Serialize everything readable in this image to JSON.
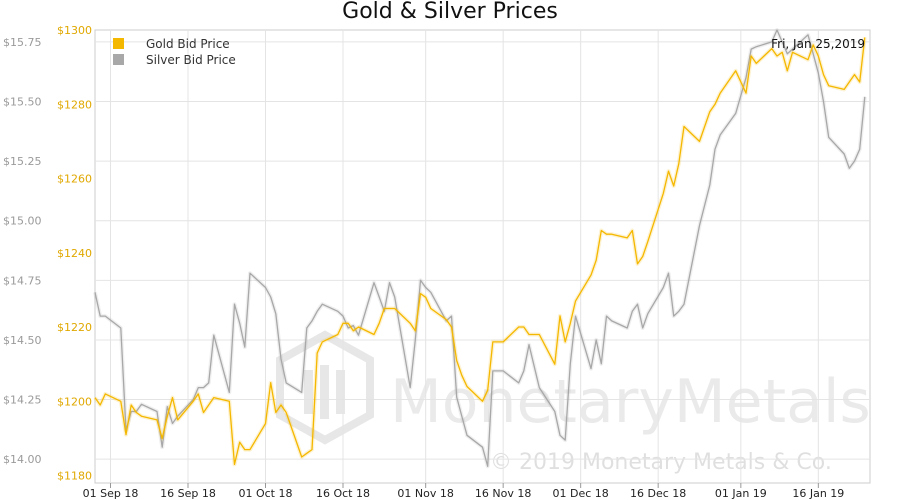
{
  "chart_data": {
    "type": "line",
    "title": "Gold & Silver Prices",
    "date_label": "Fri, Jan 25,2019",
    "watermark": "MonetaryMetals",
    "copyright": "© 2019 Monetary Metals & Co.",
    "x_ticks": [
      "01 Sep 18",
      "16 Sep 18",
      "01 Oct 18",
      "16 Oct 18",
      "01 Nov 18",
      "16 Nov 18",
      "01 Dec 18",
      "16 Dec 18",
      "01 Jan 19",
      "16 Jan 19"
    ],
    "x_range": [
      "2018-08-29",
      "2019-01-26"
    ],
    "y_left": {
      "label": "",
      "ticks": [
        "$14.00",
        "$14.25",
        "$14.50",
        "$14.75",
        "$15.00",
        "$15.25",
        "$15.50",
        "$15.75"
      ],
      "range": [
        13.9,
        15.8
      ]
    },
    "y_right": {
      "label": "",
      "ticks": [
        "$1180",
        "$1200",
        "$1220",
        "$1240",
        "$1260",
        "$1280",
        "$1300"
      ],
      "range": [
        1178,
        1300
      ]
    },
    "grid": true,
    "legend": {
      "placement": "top-left",
      "entries": [
        "Gold Bid Price",
        "Silver Bid Price"
      ]
    },
    "colors": {
      "gold": "#f5b800",
      "silver": "#a8a8a8",
      "grid": "#e4e4e4"
    },
    "series": [
      {
        "name": "Gold Bid Price",
        "axis": "right",
        "x": [
          "2018-08-29",
          "2018-08-30",
          "2018-08-31",
          "2018-09-03",
          "2018-09-04",
          "2018-09-05",
          "2018-09-06",
          "2018-09-07",
          "2018-09-10",
          "2018-09-11",
          "2018-09-12",
          "2018-09-13",
          "2018-09-14",
          "2018-09-17",
          "2018-09-18",
          "2018-09-19",
          "2018-09-20",
          "2018-09-21",
          "2018-09-24",
          "2018-09-25",
          "2018-09-26",
          "2018-09-27",
          "2018-09-28",
          "2018-10-01",
          "2018-10-02",
          "2018-10-03",
          "2018-10-04",
          "2018-10-05",
          "2018-10-08",
          "2018-10-09",
          "2018-10-10",
          "2018-10-11",
          "2018-10-12",
          "2018-10-15",
          "2018-10-16",
          "2018-10-17",
          "2018-10-18",
          "2018-10-19",
          "2018-10-22",
          "2018-10-23",
          "2018-10-24",
          "2018-10-25",
          "2018-10-26",
          "2018-10-29",
          "2018-10-30",
          "2018-10-31",
          "2018-11-01",
          "2018-11-02",
          "2018-11-05",
          "2018-11-06",
          "2018-11-07",
          "2018-11-08",
          "2018-11-09",
          "2018-11-12",
          "2018-11-13",
          "2018-11-14",
          "2018-11-15",
          "2018-11-16",
          "2018-11-19",
          "2018-11-20",
          "2018-11-21",
          "2018-11-23",
          "2018-11-26",
          "2018-11-27",
          "2018-11-28",
          "2018-11-29",
          "2018-11-30",
          "2018-12-03",
          "2018-12-04",
          "2018-12-05",
          "2018-12-06",
          "2018-12-07",
          "2018-12-10",
          "2018-12-11",
          "2018-12-12",
          "2018-12-13",
          "2018-12-14",
          "2018-12-17",
          "2018-12-18",
          "2018-12-19",
          "2018-12-20",
          "2018-12-21",
          "2018-12-24",
          "2018-12-26",
          "2018-12-27",
          "2018-12-28",
          "2018-12-31",
          "2019-01-02",
          "2019-01-03",
          "2019-01-04",
          "2019-01-07",
          "2019-01-08",
          "2019-01-09",
          "2019-01-10",
          "2019-01-11",
          "2019-01-14",
          "2019-01-15",
          "2019-01-16",
          "2019-01-17",
          "2019-01-18",
          "2019-01-21",
          "2019-01-22",
          "2019-01-23",
          "2019-01-24",
          "2019-01-25"
        ],
        "values": [
          1201,
          1199,
          1202,
          1200,
          1191,
          1199,
          1197,
          1196,
          1195,
          1190,
          1196,
          1201,
          1195,
          1200,
          1202,
          1197,
          1199,
          1201,
          1200,
          1183,
          1189,
          1187,
          1187,
          1194,
          1205,
          1197,
          1199,
          1197,
          1185,
          1186,
          1187,
          1213,
          1216,
          1218,
          1221,
          1221,
          1219,
          1220,
          1218,
          1221,
          1225,
          1225,
          1225,
          1221,
          1219,
          1229,
          1228,
          1225,
          1222,
          1220,
          1211,
          1207,
          1204,
          1200,
          1203,
          1216,
          1216,
          1216,
          1220,
          1220,
          1218,
          1218,
          1210,
          1223,
          1216,
          1221,
          1227,
          1234,
          1238,
          1246,
          1245,
          1245,
          1244,
          1246,
          1237,
          1239,
          1243,
          1256,
          1262,
          1258,
          1264,
          1274,
          1270,
          1278,
          1280,
          1283,
          1289,
          1283,
          1293,
          1291,
          1295,
          1293,
          1294,
          1289,
          1294,
          1292,
          1296,
          1293,
          1288,
          1285,
          1284,
          1286,
          1288,
          1286,
          1298
        ]
      },
      {
        "name": "Silver Bid Price",
        "axis": "left",
        "x": [
          "2018-08-29",
          "2018-08-30",
          "2018-08-31",
          "2018-09-03",
          "2018-09-04",
          "2018-09-05",
          "2018-09-06",
          "2018-09-07",
          "2018-09-10",
          "2018-09-11",
          "2018-09-12",
          "2018-09-13",
          "2018-09-14",
          "2018-09-17",
          "2018-09-18",
          "2018-09-19",
          "2018-09-20",
          "2018-09-21",
          "2018-09-24",
          "2018-09-25",
          "2018-09-26",
          "2018-09-27",
          "2018-09-28",
          "2018-10-01",
          "2018-10-02",
          "2018-10-03",
          "2018-10-04",
          "2018-10-05",
          "2018-10-08",
          "2018-10-09",
          "2018-10-10",
          "2018-10-11",
          "2018-10-12",
          "2018-10-15",
          "2018-10-16",
          "2018-10-17",
          "2018-10-18",
          "2018-10-19",
          "2018-10-22",
          "2018-10-23",
          "2018-10-24",
          "2018-10-25",
          "2018-10-26",
          "2018-10-29",
          "2018-10-30",
          "2018-10-31",
          "2018-11-01",
          "2018-11-02",
          "2018-11-05",
          "2018-11-06",
          "2018-11-07",
          "2018-11-08",
          "2018-11-09",
          "2018-11-12",
          "2018-11-13",
          "2018-11-14",
          "2018-11-15",
          "2018-11-16",
          "2018-11-19",
          "2018-11-20",
          "2018-11-21",
          "2018-11-23",
          "2018-11-26",
          "2018-11-27",
          "2018-11-28",
          "2018-11-29",
          "2018-11-30",
          "2018-12-03",
          "2018-12-04",
          "2018-12-05",
          "2018-12-06",
          "2018-12-07",
          "2018-12-10",
          "2018-12-11",
          "2018-12-12",
          "2018-12-13",
          "2018-12-14",
          "2018-12-17",
          "2018-12-18",
          "2018-12-19",
          "2018-12-20",
          "2018-12-21",
          "2018-12-24",
          "2018-12-26",
          "2018-12-27",
          "2018-12-28",
          "2018-12-31",
          "2019-01-02",
          "2019-01-03",
          "2019-01-04",
          "2019-01-07",
          "2019-01-08",
          "2019-01-09",
          "2019-01-10",
          "2019-01-11",
          "2019-01-14",
          "2019-01-15",
          "2019-01-16",
          "2019-01-17",
          "2019-01-18",
          "2019-01-21",
          "2019-01-22",
          "2019-01-23",
          "2019-01-24",
          "2019-01-25"
        ],
        "values": [
          14.7,
          14.6,
          14.6,
          14.55,
          14.12,
          14.2,
          14.2,
          14.23,
          14.2,
          14.05,
          14.22,
          14.15,
          14.18,
          14.25,
          14.3,
          14.3,
          14.32,
          14.52,
          14.28,
          14.65,
          14.57,
          14.47,
          14.78,
          14.72,
          14.68,
          14.61,
          14.42,
          14.32,
          14.28,
          14.55,
          14.58,
          14.62,
          14.65,
          14.62,
          14.6,
          14.55,
          14.56,
          14.52,
          14.74,
          14.68,
          14.62,
          14.74,
          14.68,
          14.3,
          14.5,
          14.75,
          14.72,
          14.7,
          14.58,
          14.6,
          14.26,
          14.18,
          14.1,
          14.05,
          13.97,
          14.37,
          14.37,
          14.37,
          14.32,
          14.37,
          14.48,
          14.3,
          14.2,
          14.1,
          14.08,
          14.4,
          14.6,
          14.38,
          14.5,
          14.4,
          14.6,
          14.58,
          14.55,
          14.62,
          14.65,
          14.55,
          14.61,
          14.72,
          14.78,
          14.6,
          14.62,
          14.65,
          14.98,
          15.15,
          15.3,
          15.36,
          15.45,
          15.6,
          15.72,
          15.73,
          15.75,
          15.8,
          15.75,
          15.7,
          15.72,
          15.78,
          15.7,
          15.62,
          15.5,
          15.35,
          15.28,
          15.22,
          15.25,
          15.3,
          15.52
        ]
      }
    ]
  }
}
